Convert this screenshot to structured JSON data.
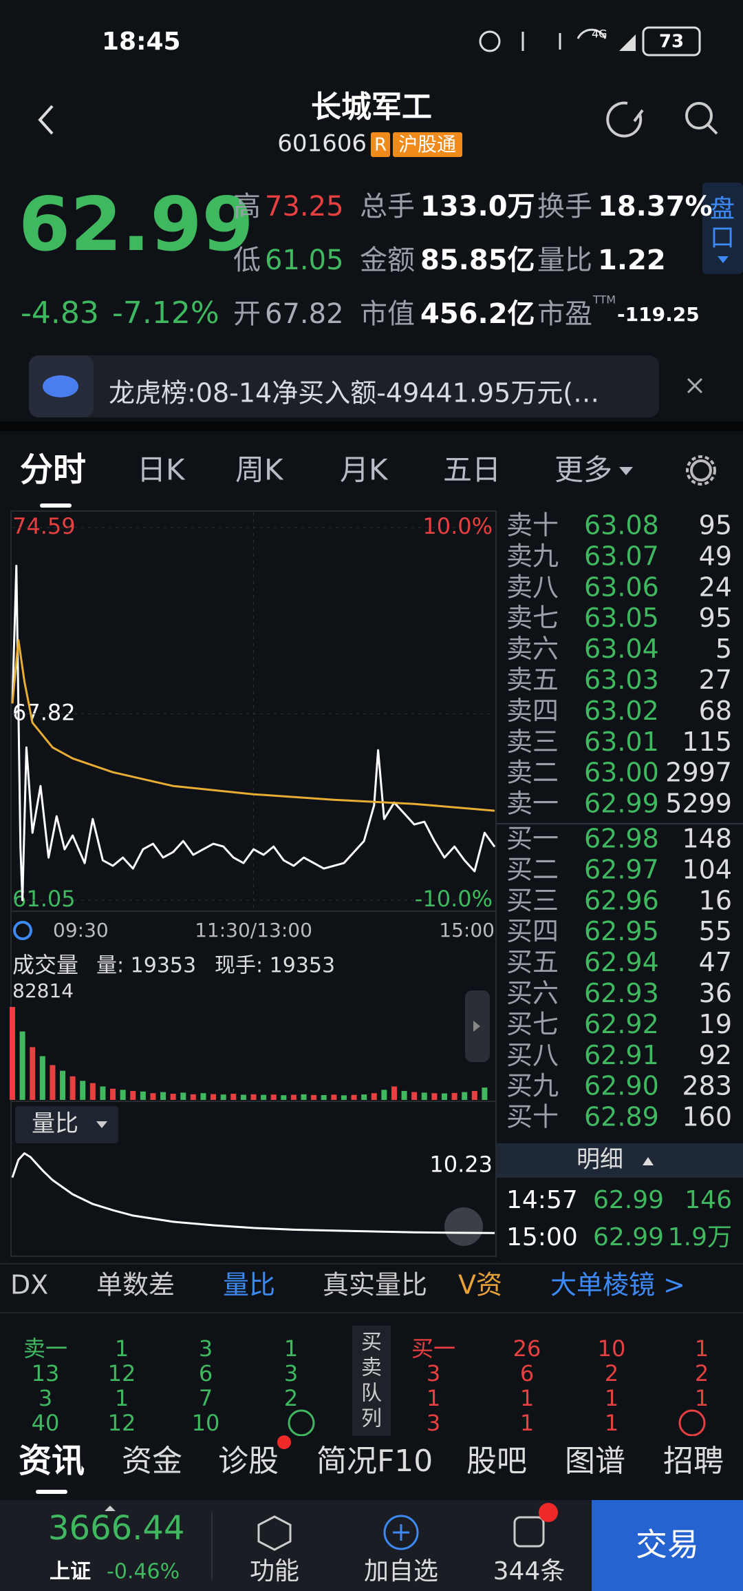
{
  "status_bar": {
    "time": "18:45",
    "network": "4G",
    "battery": "73"
  },
  "header": {
    "title": "长城军工",
    "code": "601606",
    "badge": "R",
    "connect": "沪股通"
  },
  "quote": {
    "price": "62.99",
    "change": "-4.83",
    "change_pct": "-7.12%",
    "side_tab": [
      "盘",
      "口"
    ],
    "stats": [
      [
        [
          "高",
          "73.25"
        ],
        [
          "总手",
          "133.0万"
        ],
        [
          "换手",
          "18.37%"
        ]
      ],
      [
        [
          "低",
          "61.05"
        ],
        [
          "金额",
          "85.85亿"
        ],
        [
          "量比",
          "1.22"
        ]
      ],
      [
        [
          "开",
          "67.82"
        ],
        [
          "市值",
          "456.2亿"
        ],
        [
          "市盈",
          "-119.25"
        ]
      ]
    ],
    "pe_sup": "TTM"
  },
  "banner": {
    "text": "龙虎榜:08-14净买入额-49441.95万元(…"
  },
  "tabs": [
    "分时",
    "日K",
    "周K",
    "月K",
    "五日",
    "更多"
  ],
  "chart_data": [
    {
      "type": "line",
      "xlim": [
        0,
        240
      ],
      "xticks": [
        {
          "value": 0,
          "label": "09:30"
        },
        {
          "value": 120,
          "label": "11:30/13:00"
        },
        {
          "value": 240,
          "label": "15:00"
        }
      ],
      "ylim": [
        61.05,
        74.59
      ],
      "yticks": [
        74.59,
        67.82,
        61.05
      ],
      "y2lim": [
        -10,
        10
      ],
      "y2ticks": [
        {
          "value": 10,
          "label": "10.0%"
        },
        {
          "value": -10,
          "label": "-10.0%"
        }
      ],
      "grid": true,
      "series": [
        {
          "color": "#ffffff",
          "x": [
            0,
            2,
            4,
            5,
            7,
            10,
            14,
            18,
            22,
            26,
            30,
            36,
            40,
            45,
            50,
            55,
            60,
            65,
            70,
            75,
            80,
            85,
            90,
            95,
            100,
            105,
            110,
            115,
            120,
            125,
            130,
            135,
            140,
            145,
            150,
            155,
            160,
            165,
            170,
            175,
            180,
            182,
            185,
            190,
            195,
            200,
            205,
            210,
            215,
            220,
            225,
            230,
            235,
            240
          ],
          "values": [
            68.2,
            73.2,
            63.0,
            61.05,
            66.6,
            63.5,
            65.2,
            62.6,
            64.1,
            62.9,
            63.4,
            62.4,
            64.0,
            62.5,
            62.3,
            62.6,
            62.2,
            62.9,
            63.1,
            62.6,
            62.8,
            63.2,
            62.7,
            62.9,
            63.1,
            63.0,
            62.6,
            62.4,
            62.9,
            62.7,
            63.0,
            62.5,
            62.3,
            62.6,
            62.4,
            62.2,
            62.3,
            62.4,
            62.8,
            63.2,
            64.5,
            66.5,
            64.0,
            64.6,
            64.2,
            63.8,
            63.9,
            63.2,
            62.6,
            63.0,
            62.5,
            62.1,
            63.5,
            62.99
          ]
        },
        {
          "color": "#e8ad33",
          "x": [
            0,
            3,
            6,
            10,
            20,
            30,
            50,
            80,
            120,
            160,
            200,
            240
          ],
          "values": [
            68.2,
            70.5,
            69.0,
            67.5,
            66.6,
            66.2,
            65.7,
            65.2,
            64.9,
            64.7,
            64.55,
            64.3
          ]
        }
      ]
    },
    {
      "type": "bar",
      "title": "成交量",
      "annotations": [
        "量: 19353",
        "现手: 19353"
      ],
      "xlim": [
        0,
        240
      ],
      "ylim": [
        0,
        82814
      ],
      "yticks": [
        82814
      ],
      "series": [
        {
          "color": "#e84040",
          "x": [
            0,
            10,
            20,
            30,
            40,
            50,
            60,
            70,
            80,
            90,
            100,
            110,
            120,
            130,
            140,
            150,
            160,
            170,
            180,
            190,
            200,
            210,
            220,
            230
          ],
          "values": [
            82814,
            47000,
            31000,
            21000,
            15000,
            10000,
            8000,
            6000,
            5500,
            5000,
            5200,
            5500,
            5000,
            4800,
            4600,
            4400,
            4700,
            4500,
            6000,
            12000,
            7000,
            6000,
            6200,
            8000
          ]
        },
        {
          "color": "#3fb860",
          "x": [
            5,
            15,
            25,
            35,
            45,
            55,
            65,
            75,
            85,
            95,
            105,
            115,
            125,
            135,
            145,
            155,
            165,
            175,
            185,
            195,
            205,
            215,
            225,
            235
          ],
          "values": [
            61000,
            39000,
            26000,
            17000,
            12000,
            9000,
            7500,
            7000,
            6500,
            6000,
            4800,
            4600,
            4500,
            4200,
            5000,
            4300,
            4100,
            4900,
            9000,
            8000,
            6500,
            5800,
            7000,
            11000
          ]
        }
      ]
    },
    {
      "type": "line",
      "title": "量比",
      "xlim": [
        0,
        240
      ],
      "ylim": [
        0,
        10.5
      ],
      "yticks": [
        10.23
      ],
      "series": [
        {
          "color": "#ffffff",
          "x": [
            0,
            3,
            6,
            9,
            15,
            20,
            30,
            40,
            50,
            60,
            80,
            100,
            120,
            140,
            160,
            180,
            200,
            220,
            240
          ],
          "values": [
            7.5,
            9.5,
            10.23,
            9.8,
            8.3,
            7.2,
            5.6,
            4.5,
            3.8,
            3.2,
            2.5,
            2.1,
            1.8,
            1.6,
            1.5,
            1.4,
            1.3,
            1.25,
            1.22
          ]
        }
      ]
    }
  ],
  "order_book": {
    "sell": [
      [
        "卖十",
        "63.08",
        "95"
      ],
      [
        "卖九",
        "63.07",
        "49"
      ],
      [
        "卖八",
        "63.06",
        "24"
      ],
      [
        "卖七",
        "63.05",
        "95"
      ],
      [
        "卖六",
        "63.04",
        "5"
      ],
      [
        "卖五",
        "63.03",
        "27"
      ],
      [
        "卖四",
        "63.02",
        "68"
      ],
      [
        "卖三",
        "63.01",
        "115"
      ],
      [
        "卖二",
        "63.00",
        "2997"
      ],
      [
        "卖一",
        "62.99",
        "5299"
      ]
    ],
    "buy": [
      [
        "买一",
        "62.98",
        "148"
      ],
      [
        "买二",
        "62.97",
        "104"
      ],
      [
        "买三",
        "62.96",
        "16"
      ],
      [
        "买四",
        "62.95",
        "55"
      ],
      [
        "买五",
        "62.94",
        "47"
      ],
      [
        "买六",
        "62.93",
        "36"
      ],
      [
        "买七",
        "62.92",
        "19"
      ],
      [
        "买八",
        "62.91",
        "92"
      ],
      [
        "买九",
        "62.90",
        "283"
      ],
      [
        "买十",
        "62.89",
        "160"
      ]
    ]
  },
  "trades": {
    "header": "明细",
    "rows": [
      [
        "14:57",
        "62.99",
        "146"
      ],
      [
        "15:00",
        "62.99",
        "1.9万"
      ]
    ]
  },
  "indicators": {
    "items": [
      "DX",
      "单数差",
      "量比",
      "真实量比",
      "V资"
    ],
    "link": "大单棱镜 >"
  },
  "queue": {
    "label": [
      "买",
      "卖",
      "队",
      "列"
    ],
    "sell": [
      [
        "卖一",
        "1",
        "3",
        "1"
      ],
      [
        "13",
        "12",
        "6",
        "3"
      ],
      [
        "3",
        "1",
        "7",
        "2"
      ],
      [
        "40",
        "12",
        "10"
      ]
    ],
    "buy": [
      [
        "买一",
        "26",
        "10",
        "1"
      ],
      [
        "3",
        "6",
        "2",
        "2"
      ],
      [
        "1",
        "1",
        "1",
        "1"
      ],
      [
        "3",
        "1",
        "1"
      ]
    ]
  },
  "bottom_tabs": [
    "资讯",
    "资金",
    "诊股",
    "简况F10",
    "股吧",
    "图谱",
    "招聘"
  ],
  "nav": {
    "index_value": "3666.44",
    "index_name": "上证",
    "index_change": "-0.46%",
    "items": [
      "功能",
      "加自选",
      "344条"
    ],
    "trade": "交易"
  }
}
